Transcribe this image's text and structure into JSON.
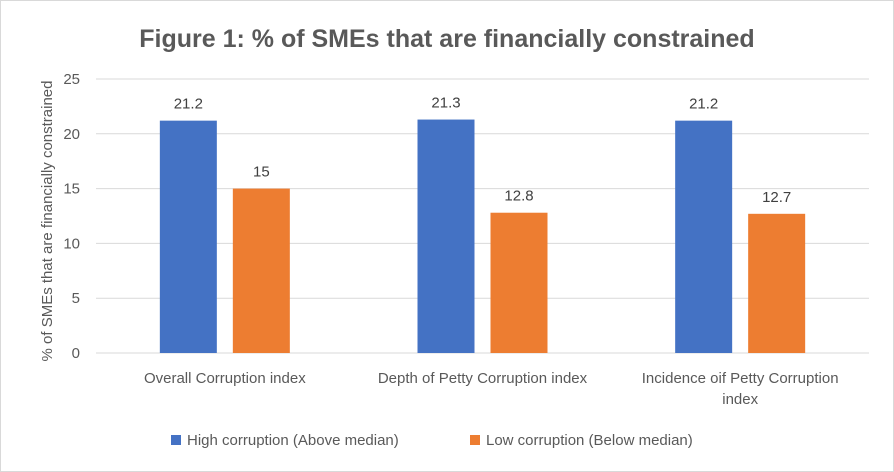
{
  "chart_data": {
    "type": "bar",
    "title": "Figure 1: % of SMEs that are financially constrained",
    "ylabel": "% of SMEs that are financially constrained",
    "xlabel": "",
    "ylim": [
      0,
      25
    ],
    "yticks": [
      0,
      5,
      10,
      15,
      20,
      25
    ],
    "categories": [
      [
        "Overall Corruption index"
      ],
      [
        "Depth of Petty Corruption index"
      ],
      [
        "Incidence oif Petty Corruption",
        "index"
      ]
    ],
    "series": [
      {
        "name": "High corruption (Above median)",
        "color": "#4472c4",
        "values": [
          21.2,
          21.3,
          21.2
        ],
        "labels": [
          "21.2",
          "21.3",
          "21.2"
        ]
      },
      {
        "name": "Low corruption (Below median)",
        "color": "#ed7d31",
        "values": [
          15,
          12.8,
          12.7
        ],
        "labels": [
          "15",
          "12.8",
          "12.7"
        ]
      }
    ],
    "grid": true,
    "legend_position": "bottom"
  }
}
